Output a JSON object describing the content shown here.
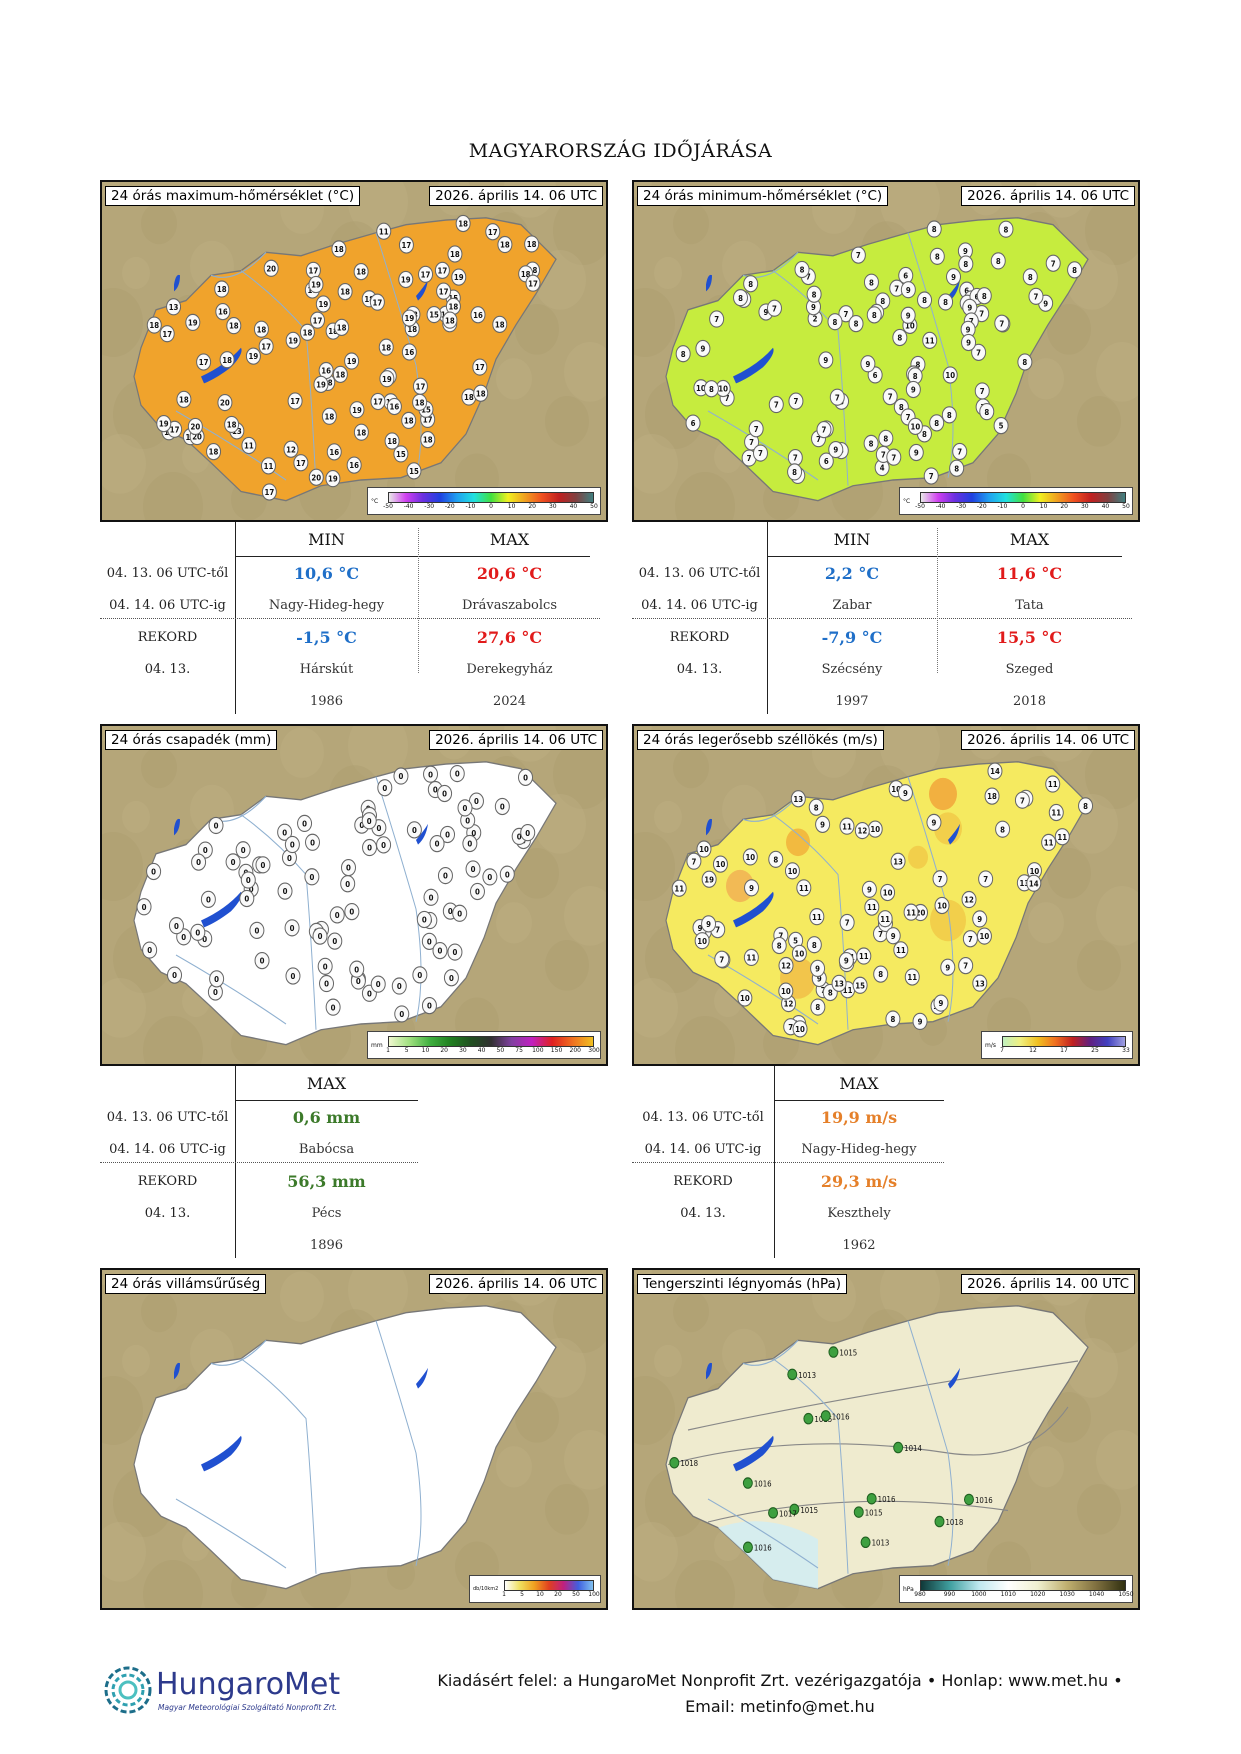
{
  "page_title": "MAGYARORSZÁG IDŐJÁRÁSA",
  "maps": {
    "tmax": {
      "title": "24 órás maximum-hőmérséklet (°C)",
      "date": "2026. április 14. 06 UTC",
      "legend_unit": "°C",
      "legend_ticks": [
        "-50",
        "-40",
        "-30",
        "-20",
        "-10",
        "0",
        "10",
        "20",
        "30",
        "40",
        "50"
      ]
    },
    "tmin": {
      "title": "24 órás minimum-hőmérséklet (°C)",
      "date": "2026. április 14. 06 UTC",
      "legend_unit": "°C",
      "legend_ticks": [
        "-50",
        "-40",
        "-30",
        "-20",
        "-10",
        "0",
        "10",
        "20",
        "30",
        "40",
        "50"
      ]
    },
    "precip": {
      "title": "24 órás csapadék (mm)",
      "date": "2026. április 14. 06 UTC",
      "legend_unit": "mm",
      "legend_ticks": [
        "1",
        "5",
        "10",
        "20",
        "30",
        "40",
        "50",
        "75",
        "100",
        "150",
        "200",
        "300"
      ]
    },
    "wind": {
      "title": "24 órás legerősebb széllökés (m/s)",
      "date": "2026. április 14. 06 UTC",
      "legend_unit": "m/s",
      "legend_ticks": [
        "7",
        "12",
        "17",
        "25",
        "33"
      ]
    },
    "lightning": {
      "title": "24 órás villámsűrűség",
      "date": "2026. április 14. 06 UTC",
      "legend_unit": "db/10km2",
      "legend_ticks": [
        "1",
        "5",
        "10",
        "20",
        "50",
        "100"
      ]
    },
    "pressure": {
      "title": "Tengerszinti légnyomás (hPa)",
      "date": "2026. április 14. 00 UTC",
      "legend_unit": "hPa",
      "legend_ticks": [
        "980",
        "990",
        "1000",
        "1010",
        "1020",
        "1030",
        "1040",
        "1050"
      ]
    }
  },
  "station_values": {
    "tmax": [
      "15",
      "13",
      "16",
      "16",
      "15",
      "17",
      "18",
      "11",
      "11",
      "16",
      "16",
      "17",
      "17",
      "17",
      "18",
      "18",
      "18",
      "16",
      "11",
      "16",
      "15",
      "18",
      "18",
      "16",
      "17",
      "17",
      "17",
      "12",
      "16",
      "11",
      "13",
      "15",
      "18",
      "18",
      "17",
      "17",
      "18",
      "16",
      "18",
      "17",
      "18",
      "18",
      "17",
      "17",
      "17",
      "17",
      "14",
      "17",
      "18",
      "18",
      "18",
      "18",
      "18",
      "18",
      "17",
      "17",
      "18",
      "15",
      "17",
      "18",
      "17",
      "18",
      "18",
      "18",
      "17",
      "18",
      "18",
      "19",
      "18",
      "18",
      "18",
      "17",
      "17",
      "18",
      "19",
      "19",
      "19",
      "18",
      "19",
      "18",
      "18",
      "19",
      "18",
      "19",
      "19",
      "18",
      "19",
      "19",
      "20",
      "18",
      "19",
      "19",
      "18",
      "19",
      "20",
      "18",
      "19",
      "20",
      "20",
      "20",
      "18"
    ],
    "tmin": [
      "8",
      "8",
      "7",
      "8",
      "9",
      "7",
      "2",
      "5",
      "7",
      "9",
      "7",
      "7",
      "6",
      "8",
      "4",
      "10",
      "8",
      "8",
      "7",
      "7",
      "9",
      "8",
      "5",
      "6",
      "8",
      "7",
      "7",
      "7",
      "8",
      "9",
      "12",
      "7",
      "6",
      "7",
      "8",
      "8",
      "7",
      "8",
      "7",
      "7",
      "8",
      "11",
      "7",
      "10",
      "6",
      "8",
      "7",
      "10",
      "8",
      "7",
      "6",
      "9",
      "7",
      "8",
      "8",
      "7",
      "7",
      "10",
      "9",
      "8",
      "8",
      "7",
      "7",
      "8",
      "6",
      "9",
      "7",
      "7",
      "9",
      "7",
      "8",
      "6",
      "8",
      "8",
      "9",
      "8",
      "9",
      "7",
      "10",
      "7",
      "7",
      "7",
      "5",
      "8",
      "8",
      "9",
      "8",
      "9",
      "7",
      "8",
      "7",
      "8",
      "8",
      "8",
      "9",
      "8",
      "7",
      "9",
      "8",
      "9",
      "8",
      "8",
      "8",
      "7",
      "9",
      "8"
    ],
    "precip": [
      "0",
      "0",
      "0",
      "0",
      "0",
      "0",
      "0",
      "0",
      "0",
      "0",
      "0",
      "0",
      "0",
      "0",
      "0",
      "0",
      "0",
      "0",
      "0",
      "0",
      "0",
      "0",
      "0",
      "0",
      "0",
      "0",
      "0",
      "0",
      "0",
      "0",
      "0",
      "0",
      "0",
      "0",
      "0",
      "0",
      "0",
      "0",
      "0",
      "0",
      "0",
      "0",
      "0",
      "0",
      "0",
      "0",
      "0",
      "0",
      "0",
      "0",
      "0",
      "0",
      "0",
      "0",
      "0",
      "0",
      "0",
      "0",
      "0",
      "0",
      "0",
      "0",
      "0",
      "0",
      "0",
      "0",
      "0",
      "0",
      "0",
      "0",
      "0",
      "0",
      "0",
      "0",
      "0",
      "0",
      "0",
      "0",
      "0",
      "0",
      "0",
      "0",
      "0",
      "0",
      "0",
      "0",
      "0",
      "0",
      "0",
      "0",
      "0",
      "0",
      "0"
    ],
    "wind": [
      "8",
      "9",
      "7",
      "5",
      "10",
      "10",
      "10",
      "7",
      "8",
      "7",
      "10",
      "11",
      "9",
      "10",
      "20",
      "11",
      "11",
      "7",
      "12",
      "13",
      "10",
      "11",
      "10",
      "11",
      "9",
      "12",
      "10",
      "9",
      "9",
      "18",
      "9",
      "10",
      "13",
      "9",
      "9",
      "8",
      "11",
      "14",
      "9",
      "10",
      "11",
      "10",
      "8",
      "8",
      "7",
      "9",
      "11",
      "9",
      "12",
      "8",
      "7",
      "13",
      "19",
      "11",
      "7",
      "10",
      "9",
      "7",
      "7",
      "11",
      "13",
      "11",
      "11",
      "10",
      "10",
      "8",
      "7",
      "8",
      "15",
      "11",
      "9",
      "10",
      "9",
      "10",
      "9",
      "11",
      "11",
      "9",
      "8",
      "7",
      "7",
      "9",
      "10",
      "12",
      "8",
      "13",
      "11",
      "14",
      "11",
      "8",
      "11",
      "10",
      "7"
    ],
    "pressure": [
      "1018",
      "1018",
      "1015",
      "1015",
      "1016",
      "1017",
      "1014",
      "1016",
      "1016",
      "1015",
      "1015",
      "1016",
      "1013",
      "1016",
      "1013"
    ]
  },
  "tables": {
    "temp_left": {
      "headers": [
        "MIN",
        "MAX"
      ],
      "period_from": "04. 13. 06 UTC-től",
      "period_to": "04. 14. 06 UTC-ig",
      "min_value": "10,6 °C",
      "min_place": "Nagy-Hideg-hegy",
      "max_value": "20,6 °C",
      "max_place": "Drávaszabolcs",
      "record_label": "REKORD",
      "record_date": "04. 13.",
      "rec_min_value": "-1,5 °C",
      "rec_min_place": "Hárskút",
      "rec_min_year": "1986",
      "rec_max_value": "27,6 °C",
      "rec_max_place": "Derekegyház",
      "rec_max_year": "2024"
    },
    "temp_right": {
      "headers": [
        "MIN",
        "MAX"
      ],
      "period_from": "04. 13. 06 UTC-től",
      "period_to": "04. 14. 06 UTC-ig",
      "min_value": "2,2 °C",
      "min_place": "Zabar",
      "max_value": "11,6 °C",
      "max_place": "Tata",
      "record_label": "REKORD",
      "record_date": "04. 13.",
      "rec_min_value": "-7,9 °C",
      "rec_min_place": "Szécsény",
      "rec_min_year": "1997",
      "rec_max_value": "15,5 °C",
      "rec_max_place": "Szeged",
      "rec_max_year": "2018"
    },
    "precip": {
      "header": "MAX",
      "period_from": "04. 13. 06 UTC-től",
      "period_to": "04. 14. 06 UTC-ig",
      "max_value": "0,6 mm",
      "max_place": "Babócsa",
      "record_label": "REKORD",
      "record_date": "04. 13.",
      "rec_value": "56,3 mm",
      "rec_place": "Pécs",
      "rec_year": "1896"
    },
    "wind": {
      "header": "MAX",
      "period_from": "04. 13. 06 UTC-től",
      "period_to": "04. 14. 06 UTC-ig",
      "max_value": "19,9 m/s",
      "max_place": "Nagy-Hideg-hegy",
      "record_label": "REKORD",
      "record_date": "04. 13.",
      "rec_value": "29,3 m/s",
      "rec_place": "Keszthely",
      "rec_year": "1962"
    }
  },
  "footer": {
    "logo_name": "HungaroMet",
    "logo_sub": "Magyar Meteorológiai Szolgáltató Nonprofit Zrt.",
    "line1": "Kiadásért felel: a HungaroMet Nonprofit Zrt. vezérigazgatója • Honlap: www.met.hu •",
    "line2": "Email: metinfo@met.hu"
  },
  "colors": {
    "min_blue": "#1f6fc8",
    "max_red": "#e11b1b",
    "precip_green": "#3c7a2a",
    "wind_orange": "#e5802a"
  }
}
